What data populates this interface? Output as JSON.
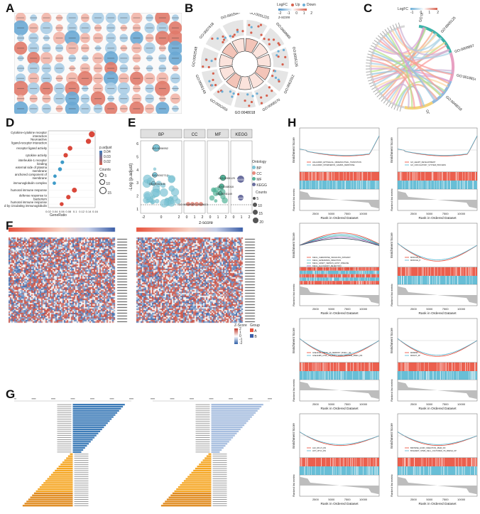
{
  "panel_labels": [
    "A",
    "B",
    "C",
    "D",
    "E",
    "F",
    "G",
    "H"
  ],
  "colors": {
    "up": "#d6604d",
    "down": "#6baed6",
    "dark_red": "#c0392b",
    "light_red": "#f4a582",
    "light_blue": "#92c5de",
    "grey_strip": "#e6e6e6",
    "teal": "#3bb2a8",
    "gsea_red": "#e8432f",
    "gsea_blue": "#4db3cf",
    "bar_blue": "#3e7cb8",
    "bar_orange": "#f5a623"
  },
  "panelB": {
    "go_terms": [
      "GO:0031225",
      "GO:0009986",
      "GO:0005126",
      "GO:0062012",
      "GO:0008270",
      "GO:0048018",
      "GO:0002455",
      "GO:0005149",
      "GO:0002548",
      "GO:0007618",
      "GO:0002687"
    ],
    "legend_title": "LogFC",
    "legend_up": "Up",
    "legend_down": "Down",
    "zscore_label": "z-score",
    "zscore_ticks": [
      "-2",
      "-1",
      "0",
      "1",
      "2"
    ]
  },
  "panelC": {
    "legend_title": "LogFC",
    "legend_ticks": [
      "-1",
      "0",
      "1",
      "2"
    ],
    "go_terms": [
      "GO:0005615",
      "GO:0005125",
      "GO:0009897",
      "GO:0018814",
      "GO:0048018",
      "GO:0002455"
    ]
  },
  "panelD": {
    "xlabel": "GeneRatio",
    "x_ticks": [
      "0.02",
      "0.04",
      "0.06",
      "0.08",
      "0.1",
      "0.12",
      "0.14",
      "0.16"
    ],
    "color_legend_title": "p.adjust",
    "color_legend_ticks": [
      "0.04",
      "0.03",
      "0.02"
    ],
    "count_legend_title": "Counts",
    "count_legend_ticks": [
      "5",
      "10",
      "15"
    ],
    "terms": [
      "Cytokine-cytokine receptor interaction",
      "Neuroactive ligand-receptor interaction",
      "receptor ligand activity",
      "cytokine activity",
      "interleukin-1 receptor binding",
      "external side of plasma membrane",
      "anchored component of membrane",
      "immunoglobulin complex",
      "humoral immune response",
      "defense response to bacterium",
      "humoral immune response mediated by circulating immunoglobulin"
    ]
  },
  "chart_data": {
    "type": "scatter",
    "title": "",
    "xlabel": "GeneRatio",
    "ylabel": "",
    "xlim": [
      0.02,
      0.16
    ],
    "categories": [
      "Cytokine-cytokine receptor interaction",
      "Neuroactive ligand-receptor interaction",
      "receptor ligand activity",
      "cytokine activity",
      "interleukin-1 receptor binding",
      "external side of plasma membrane",
      "anchored component of membrane",
      "immunoglobulin complex",
      "humoral immune response",
      "defense response to bacterium",
      "humoral immune response mediated by circulating immunoglobulin"
    ],
    "gene_ratio": [
      0.15,
      0.14,
      0.085,
      0.072,
      0.062,
      0.055,
      0.04,
      0.038,
      0.098,
      0.08,
      0.06
    ],
    "p_adjust": [
      0.02,
      0.02,
      0.02,
      0.02,
      0.04,
      0.045,
      0.045,
      0.045,
      0.02,
      0.02,
      0.02
    ],
    "counts": [
      15,
      12,
      10,
      9,
      6,
      7,
      5,
      5,
      11,
      9,
      7
    ]
  },
  "panelE": {
    "facets": [
      "BP",
      "CC",
      "MF",
      "KEGG"
    ],
    "ylabel": "-Log (p.adjust)",
    "xlabel": "z-score",
    "y_ticks": [
      "6",
      "5",
      "4",
      "3",
      "2",
      "1"
    ],
    "x_ticks_bp": [
      "-2",
      "0",
      "2"
    ],
    "x_ticks_cc": [
      "0",
      "1",
      "2"
    ],
    "x_ticks_mf": [
      "0",
      "1",
      "2"
    ],
    "x_ticks_kegg": [
      "0",
      "1",
      "2"
    ],
    "legend_ontology_title": "Ontology",
    "legend_ontology": [
      "BP",
      "CC",
      "MF",
      "KEGG"
    ],
    "legend_counts_title": "Counts",
    "legend_counts": [
      "5",
      "10",
      "15",
      "20"
    ],
    "point_labels": [
      "GO:0006952",
      "GO:0002712",
      "GO:0042439",
      "GO:0005125",
      "GO:0048018",
      "GO:0005149",
      "hsa04060",
      "hsa04080",
      "GO:0009897",
      "GO:0005615"
    ]
  },
  "panelF": {
    "legend_zscore_title": "Z-Score",
    "legend_zscore_ticks": [
      "2",
      "1",
      "0",
      "-1",
      "-2"
    ],
    "legend_group_title": "Group",
    "legend_group_items": [
      "A",
      "B"
    ]
  },
  "panelH": {
    "plots": [
      {
        "legend": [
          "HALLMARK_EPITHELIAL_MESENCHYMAL_TRANSITION",
          "HALLMARK_INTERFERON_GAMMA_RESPONSE"
        ]
      },
      {
        "legend": [
          "GO_HEART_DEVELOPMENT",
          "GO_CIRCULATORY_SYSTEM_PROCESS"
        ]
      },
      {
        "legend": [
          "KEGG_CHEMOKINE_SIGNALING_PATHWAY",
          "KEGG_LEISHMANIA_INFECTION",
          "KEGG_GRAFT_VERSUS_HOST_DISEASE",
          "KEGG_ALLOGRAFT_REJECTION",
          "KEGG_ANTIGEN_PROCESSING_AND_PRESENTATION"
        ]
      },
      {
        "legend": [
          "MODULE_5",
          "MODULE_8"
        ]
      },
      {
        "legend": [
          "GSE13411_NAIVE_VS_MEMORY_BCELL_UP",
          "GSE13485_CTRL_VS_DAY7_YF17D_VACCINE_PBMC_DN"
        ]
      },
      {
        "legend": [
          "MIR9996",
          "MIR137_3P"
        ]
      },
      {
        "legend": [
          "ALK_DN.V1_DN",
          "AKT_UP.V1_DN"
        ]
      },
      {
        "legend": [
          "BROWNE_HCMV_INFECTION_48HR_DN",
          "BOQUEST_STEM_CELL_CULTURED_VS_FRESH_UP"
        ]
      }
    ],
    "enrichment_label": "Enrichment Score",
    "ranked_label": "Ranked list metric",
    "rank_label": "Rank in Ordered Dataset",
    "x_ticks": [
      "2500",
      "5000",
      "7500",
      "10000"
    ]
  }
}
